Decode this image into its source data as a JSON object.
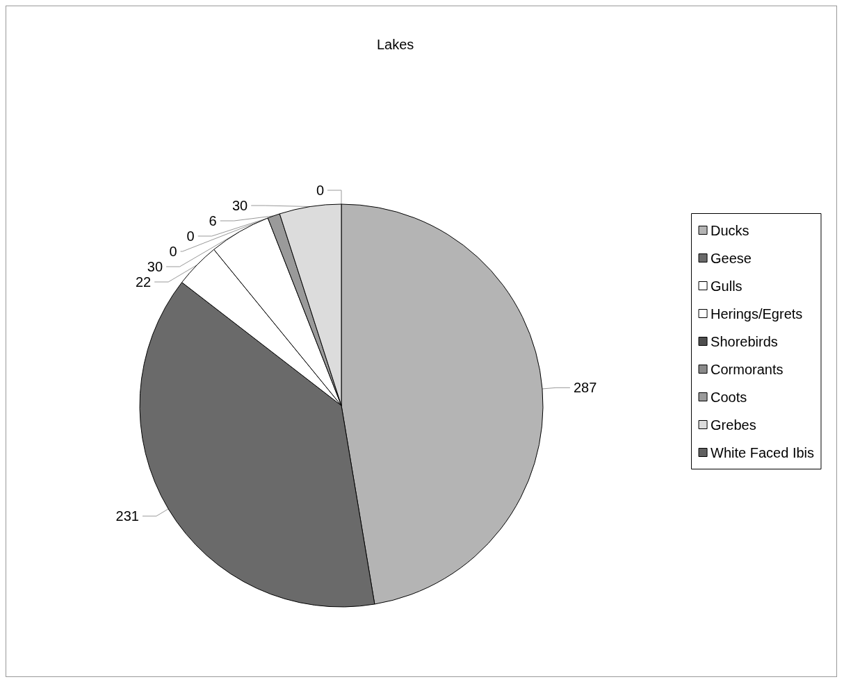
{
  "chart_data": {
    "type": "pie",
    "title": "Lakes",
    "categories": [
      "Ducks",
      "Geese",
      "Gulls",
      "Herings/Egrets",
      "Shorebirds",
      "Cormorants",
      "Coots",
      "Grebes",
      "White Faced Ibis"
    ],
    "values": [
      287,
      231,
      22,
      30,
      0,
      0,
      6,
      30,
      0
    ],
    "colors": [
      "#b4b4b4",
      "#6a6a6a",
      "#ffffff",
      "#ffffff",
      "#4e4e4e",
      "#8a8a8a",
      "#9a9a9a",
      "#dcdcdc",
      "#606060"
    ],
    "value_labels": [
      "287",
      "231",
      "22",
      "30",
      "0",
      "0",
      "6",
      "30",
      "0"
    ],
    "legend": "right"
  }
}
